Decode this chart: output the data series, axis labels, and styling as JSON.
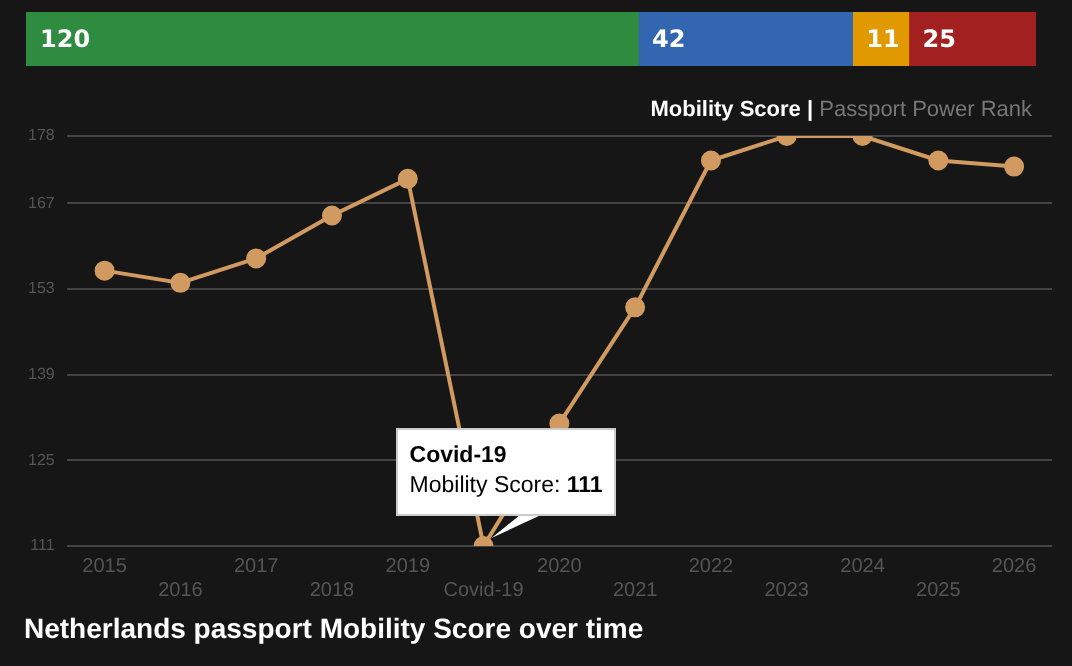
{
  "chart_data": [
    {
      "type": "bar",
      "orientation": "horizontal",
      "stacked": true,
      "categories": [
        null
      ],
      "data_labels": true,
      "legend": false,
      "series": [
        {
          "color": "#2e8b3f",
          "values": [
            120
          ]
        },
        {
          "color": "#3266b0",
          "values": [
            42
          ]
        },
        {
          "color": "#e09a00",
          "values": [
            11
          ]
        },
        {
          "color": "#a32020",
          "values": [
            25
          ]
        }
      ]
    },
    {
      "type": "line",
      "title": "Netherlands passport Mobility Score over time",
      "subtitle": "Mobility Score | Passport Power Rank",
      "categories": [
        "2015",
        "2016",
        "2017",
        "2018",
        "2019",
        "Covid-19",
        "2020",
        "2021",
        "2022",
        "2023",
        "2024",
        "2025",
        "2026"
      ],
      "series": [
        {
          "color": "#d09a60",
          "values": [
            156,
            154,
            158,
            165,
            171,
            111,
            131,
            150,
            174,
            178,
            178,
            174,
            173
          ]
        }
      ],
      "ylim": [
        111,
        178
      ],
      "yticks": [
        111,
        125,
        139,
        153,
        167,
        178
      ],
      "grid": "y",
      "legend": false,
      "marker": "circle",
      "line_style": "solid",
      "annotations": [
        {
          "text": "Covid-19\nMobility Score: 111",
          "x": "Covid-19",
          "y": 111
        }
      ]
    }
  ]
}
